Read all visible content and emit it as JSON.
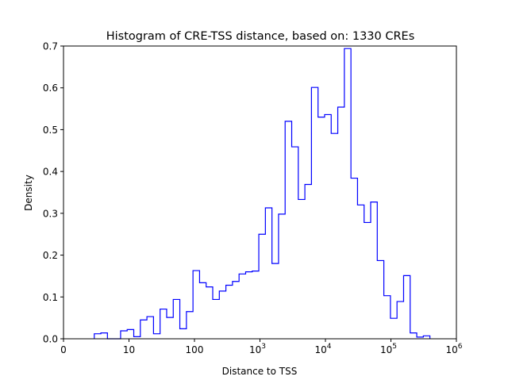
{
  "chart_data": {
    "type": "histogram-step",
    "title": "Histogram of CRE-TSS distance, based on: 1330 CREs",
    "xlabel": "Distance to TSS",
    "ylabel": "Density",
    "xscale": "symlog",
    "x_ticks": [
      {
        "base": "0",
        "exp": ""
      },
      {
        "base": "10",
        "exp": ""
      },
      {
        "base": "100",
        "exp": ""
      },
      {
        "base": "10",
        "exp": "3"
      },
      {
        "base": "10",
        "exp": "4"
      },
      {
        "base": "10",
        "exp": "5"
      },
      {
        "base": "10",
        "exp": "6"
      }
    ],
    "y_ticks": [
      "0.0",
      "0.1",
      "0.2",
      "0.3",
      "0.4",
      "0.5",
      "0.6",
      "0.7"
    ],
    "ylim": [
      0,
      0.7
    ],
    "xlim_decades": [
      0,
      6
    ],
    "bin_start_decade": 0.47,
    "bin_width_decade": 0.1005,
    "density": [
      0.012,
      0.014,
      0,
      0,
      0.019,
      0.022,
      0.005,
      0.045,
      0.053,
      0.012,
      0.071,
      0.051,
      0.094,
      0.024,
      0.065,
      0.163,
      0.134,
      0.124,
      0.094,
      0.114,
      0.128,
      0.137,
      0.155,
      0.16,
      0.162,
      0.25,
      0.313,
      0.18,
      0.298,
      0.52,
      0.459,
      0.333,
      0.369,
      0.601,
      0.53,
      0.536,
      0.491,
      0.554,
      0.694,
      0.384,
      0.32,
      0.278,
      0.327,
      0.187,
      0.103,
      0.049,
      0.089,
      0.151,
      0.014,
      0.004,
      0.007
    ],
    "line_color": "#0000ff",
    "grid": false
  }
}
